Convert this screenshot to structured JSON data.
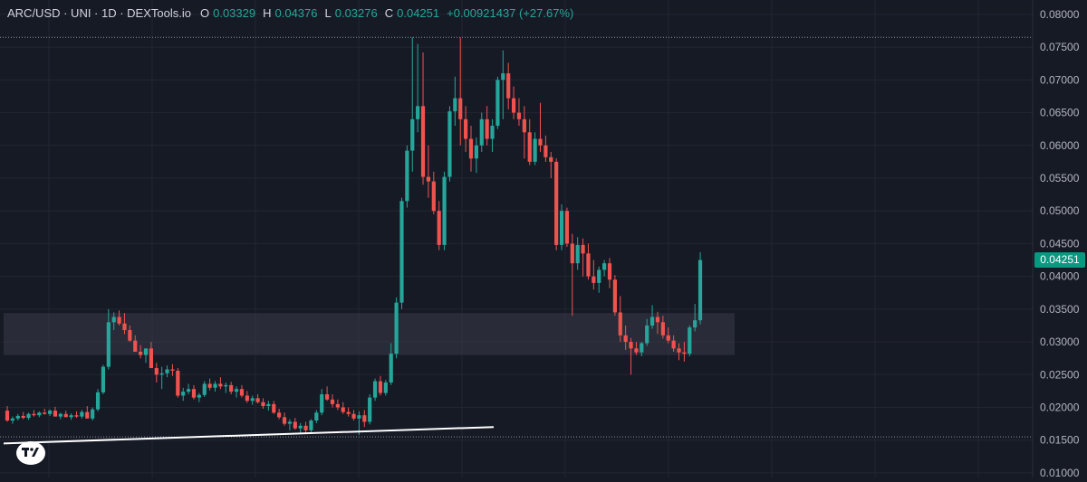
{
  "header": {
    "title": "ARC/USD · UNI · 1D · DEXTools.io",
    "o_label": "O",
    "o_value": "0.03329",
    "h_label": "H",
    "h_value": "0.04376",
    "l_label": "L",
    "l_value": "0.03276",
    "c_label": "C",
    "c_value": "0.04251",
    "change": "+0.00921437 (+27.67%)"
  },
  "last_price_label": "0.04251",
  "colors": {
    "background": "#161a25",
    "up": "#26a69a",
    "down": "#ef5350",
    "grid": "#232632",
    "axis_text": "#b2b5be",
    "last_price_tag": "#089981",
    "zone": "#3a3d48",
    "trendline": "#ffffff"
  },
  "logo_icon": "tradingview-logo-icon",
  "chart_data": {
    "type": "candlestick",
    "y_axis": {
      "ticks": [
        "0.08000",
        "0.07500",
        "0.07000",
        "0.06500",
        "0.06000",
        "0.05500",
        "0.05000",
        "0.04500",
        "0.04000",
        "0.03500",
        "0.03000",
        "0.02500",
        "0.02000",
        "0.01500",
        "0.01000"
      ],
      "range": [
        0.0093,
        0.0822
      ],
      "side": "right"
    },
    "last_price": 0.04251,
    "support_zone": {
      "low": 0.028,
      "high": 0.0344
    },
    "trendline": {
      "from_price": 0.0145,
      "to_price": 0.017
    },
    "dotted_levels": [
      0.0765,
      0.0155
    ],
    "candles": [
      [
        0.0195,
        0.0202,
        0.0178,
        0.018
      ],
      [
        0.018,
        0.0186,
        0.0175,
        0.0183
      ],
      [
        0.0183,
        0.019,
        0.018,
        0.0187
      ],
      [
        0.0187,
        0.0193,
        0.0182,
        0.0184
      ],
      [
        0.0184,
        0.0192,
        0.0181,
        0.019
      ],
      [
        0.019,
        0.0196,
        0.0186,
        0.0188
      ],
      [
        0.0188,
        0.0194,
        0.0185,
        0.0192
      ],
      [
        0.0192,
        0.0198,
        0.0189,
        0.019
      ],
      [
        0.019,
        0.0197,
        0.0187,
        0.0195
      ],
      [
        0.0195,
        0.0201,
        0.019,
        0.0186
      ],
      [
        0.0186,
        0.0192,
        0.0182,
        0.019
      ],
      [
        0.019,
        0.0195,
        0.0186,
        0.0185
      ],
      [
        0.0185,
        0.0191,
        0.0181,
        0.0188
      ],
      [
        0.0188,
        0.0194,
        0.0184,
        0.0186
      ],
      [
        0.0186,
        0.0196,
        0.0183,
        0.0193
      ],
      [
        0.0193,
        0.0202,
        0.0188,
        0.0183
      ],
      [
        0.0183,
        0.02,
        0.018,
        0.0197
      ],
      [
        0.0197,
        0.0228,
        0.0194,
        0.0223
      ],
      [
        0.0223,
        0.0265,
        0.022,
        0.0262
      ],
      [
        0.0262,
        0.035,
        0.0258,
        0.033
      ],
      [
        0.033,
        0.0345,
        0.0318,
        0.0338
      ],
      [
        0.0338,
        0.0348,
        0.0325,
        0.0328
      ],
      [
        0.0328,
        0.0344,
        0.0312,
        0.0318
      ],
      [
        0.0318,
        0.0325,
        0.03,
        0.0302
      ],
      [
        0.0302,
        0.031,
        0.0285,
        0.0285
      ],
      [
        0.0285,
        0.0295,
        0.0275,
        0.028
      ],
      [
        0.028,
        0.029,
        0.0268,
        0.029
      ],
      [
        0.029,
        0.03,
        0.026,
        0.026
      ],
      [
        0.026,
        0.0268,
        0.0238,
        0.025
      ],
      [
        0.025,
        0.0262,
        0.0228,
        0.0252
      ],
      [
        0.0252,
        0.0264,
        0.0246,
        0.0258
      ],
      [
        0.0258,
        0.0266,
        0.0248,
        0.0256
      ],
      [
        0.0256,
        0.026,
        0.0215,
        0.0218
      ],
      [
        0.0218,
        0.023,
        0.021,
        0.0224
      ],
      [
        0.0224,
        0.0236,
        0.022,
        0.0228
      ],
      [
        0.0228,
        0.0234,
        0.0212,
        0.0215
      ],
      [
        0.0215,
        0.0222,
        0.0208,
        0.0219
      ],
      [
        0.0219,
        0.024,
        0.0216,
        0.0236
      ],
      [
        0.0236,
        0.0244,
        0.0226,
        0.023
      ],
      [
        0.023,
        0.024,
        0.0224,
        0.0236
      ],
      [
        0.0236,
        0.0246,
        0.0228,
        0.0232
      ],
      [
        0.0232,
        0.0238,
        0.0222,
        0.0234
      ],
      [
        0.0234,
        0.0239,
        0.022,
        0.0224
      ],
      [
        0.0224,
        0.0232,
        0.0215,
        0.0228
      ],
      [
        0.0228,
        0.0234,
        0.0215,
        0.0218
      ],
      [
        0.0218,
        0.0225,
        0.0207,
        0.021
      ],
      [
        0.021,
        0.0218,
        0.0204,
        0.0214
      ],
      [
        0.0214,
        0.022,
        0.0206,
        0.0208
      ],
      [
        0.0208,
        0.0214,
        0.0198,
        0.0202
      ],
      [
        0.0202,
        0.021,
        0.0195,
        0.0205
      ],
      [
        0.0205,
        0.021,
        0.019,
        0.0192
      ],
      [
        0.0192,
        0.0198,
        0.0182,
        0.0185
      ],
      [
        0.0185,
        0.0192,
        0.0172,
        0.0175
      ],
      [
        0.0175,
        0.0182,
        0.0165,
        0.0178
      ],
      [
        0.0178,
        0.0184,
        0.0166,
        0.0168
      ],
      [
        0.0168,
        0.0176,
        0.016,
        0.0172
      ],
      [
        0.0172,
        0.0178,
        0.016,
        0.0165
      ],
      [
        0.0165,
        0.0182,
        0.0162,
        0.018
      ],
      [
        0.018,
        0.0196,
        0.0176,
        0.0192
      ],
      [
        0.0192,
        0.0228,
        0.0188,
        0.022
      ],
      [
        0.022,
        0.0232,
        0.021,
        0.0212
      ],
      [
        0.0212,
        0.022,
        0.02,
        0.0205
      ],
      [
        0.0205,
        0.0212,
        0.0196,
        0.02
      ],
      [
        0.02,
        0.0208,
        0.019,
        0.0193
      ],
      [
        0.0193,
        0.02,
        0.0186,
        0.019
      ],
      [
        0.019,
        0.0196,
        0.018,
        0.0183
      ],
      [
        0.0183,
        0.0194,
        0.0158,
        0.0188
      ],
      [
        0.0188,
        0.0196,
        0.017,
        0.0178
      ],
      [
        0.0178,
        0.022,
        0.0174,
        0.0215
      ],
      [
        0.0215,
        0.0244,
        0.021,
        0.024
      ],
      [
        0.024,
        0.0248,
        0.0218,
        0.0222
      ],
      [
        0.0222,
        0.0242,
        0.0218,
        0.0238
      ],
      [
        0.0238,
        0.0298,
        0.0234,
        0.0282
      ],
      [
        0.0282,
        0.0368,
        0.0275,
        0.036
      ],
      [
        0.036,
        0.052,
        0.035,
        0.0515
      ],
      [
        0.0515,
        0.06,
        0.0505,
        0.0592
      ],
      [
        0.0592,
        0.0765,
        0.056,
        0.064
      ],
      [
        0.064,
        0.0755,
        0.062,
        0.066
      ],
      [
        0.066,
        0.0742,
        0.054,
        0.0552
      ],
      [
        0.0552,
        0.06,
        0.052,
        0.0545
      ],
      [
        0.0545,
        0.056,
        0.0495,
        0.05
      ],
      [
        0.05,
        0.0515,
        0.044,
        0.0448
      ],
      [
        0.0448,
        0.056,
        0.044,
        0.0552
      ],
      [
        0.0552,
        0.066,
        0.0545,
        0.0652
      ],
      [
        0.0652,
        0.0705,
        0.063,
        0.0672
      ],
      [
        0.0672,
        0.0765,
        0.06,
        0.064
      ],
      [
        0.064,
        0.066,
        0.059,
        0.061
      ],
      [
        0.061,
        0.063,
        0.056,
        0.058
      ],
      [
        0.058,
        0.0612,
        0.0558,
        0.06
      ],
      [
        0.06,
        0.065,
        0.059,
        0.064
      ],
      [
        0.064,
        0.066,
        0.06,
        0.061
      ],
      [
        0.061,
        0.064,
        0.059,
        0.063
      ],
      [
        0.063,
        0.0705,
        0.0625,
        0.07
      ],
      [
        0.07,
        0.0745,
        0.064,
        0.071
      ],
      [
        0.071,
        0.0726,
        0.0655,
        0.0672
      ],
      [
        0.0672,
        0.069,
        0.064,
        0.065
      ],
      [
        0.065,
        0.0672,
        0.063,
        0.064
      ],
      [
        0.064,
        0.066,
        0.058,
        0.062
      ],
      [
        0.062,
        0.064,
        0.057,
        0.0575
      ],
      [
        0.0575,
        0.062,
        0.057,
        0.061
      ],
      [
        0.061,
        0.0665,
        0.059,
        0.06
      ],
      [
        0.06,
        0.0615,
        0.0575,
        0.0582
      ],
      [
        0.0582,
        0.059,
        0.055,
        0.0575
      ],
      [
        0.0575,
        0.058,
        0.044,
        0.0448
      ],
      [
        0.0448,
        0.051,
        0.044,
        0.05
      ],
      [
        0.05,
        0.0505,
        0.0445,
        0.045
      ],
      [
        0.045,
        0.0465,
        0.034,
        0.042
      ],
      [
        0.042,
        0.046,
        0.041,
        0.0448
      ],
      [
        0.0448,
        0.0458,
        0.04,
        0.0435
      ],
      [
        0.0435,
        0.045,
        0.0395,
        0.04
      ],
      [
        0.04,
        0.0425,
        0.038,
        0.039
      ],
      [
        0.039,
        0.0415,
        0.0375,
        0.041
      ],
      [
        0.041,
        0.0425,
        0.04,
        0.042
      ],
      [
        0.042,
        0.0428,
        0.0382,
        0.0395
      ],
      [
        0.0395,
        0.0402,
        0.034,
        0.0345
      ],
      [
        0.0345,
        0.037,
        0.03,
        0.031
      ],
      [
        0.031,
        0.0325,
        0.0288,
        0.03
      ],
      [
        0.03,
        0.0306,
        0.025,
        0.029
      ],
      [
        0.029,
        0.03,
        0.028,
        0.0284
      ],
      [
        0.0284,
        0.03,
        0.0278,
        0.0298
      ],
      [
        0.0298,
        0.0335,
        0.0294,
        0.0325
      ],
      [
        0.0325,
        0.0356,
        0.032,
        0.0338
      ],
      [
        0.0338,
        0.0346,
        0.0312,
        0.033
      ],
      [
        0.033,
        0.034,
        0.0305,
        0.031
      ],
      [
        0.031,
        0.0322,
        0.0298,
        0.0302
      ],
      [
        0.0302,
        0.031,
        0.0285,
        0.029
      ],
      [
        0.029,
        0.0298,
        0.0272,
        0.0284
      ],
      [
        0.0284,
        0.03,
        0.027,
        0.0282
      ],
      [
        0.0282,
        0.0325,
        0.0278,
        0.0322
      ],
      [
        0.0322,
        0.0358,
        0.0316,
        0.0333
      ],
      [
        0.0333,
        0.0437,
        0.0327,
        0.0425
      ]
    ]
  }
}
